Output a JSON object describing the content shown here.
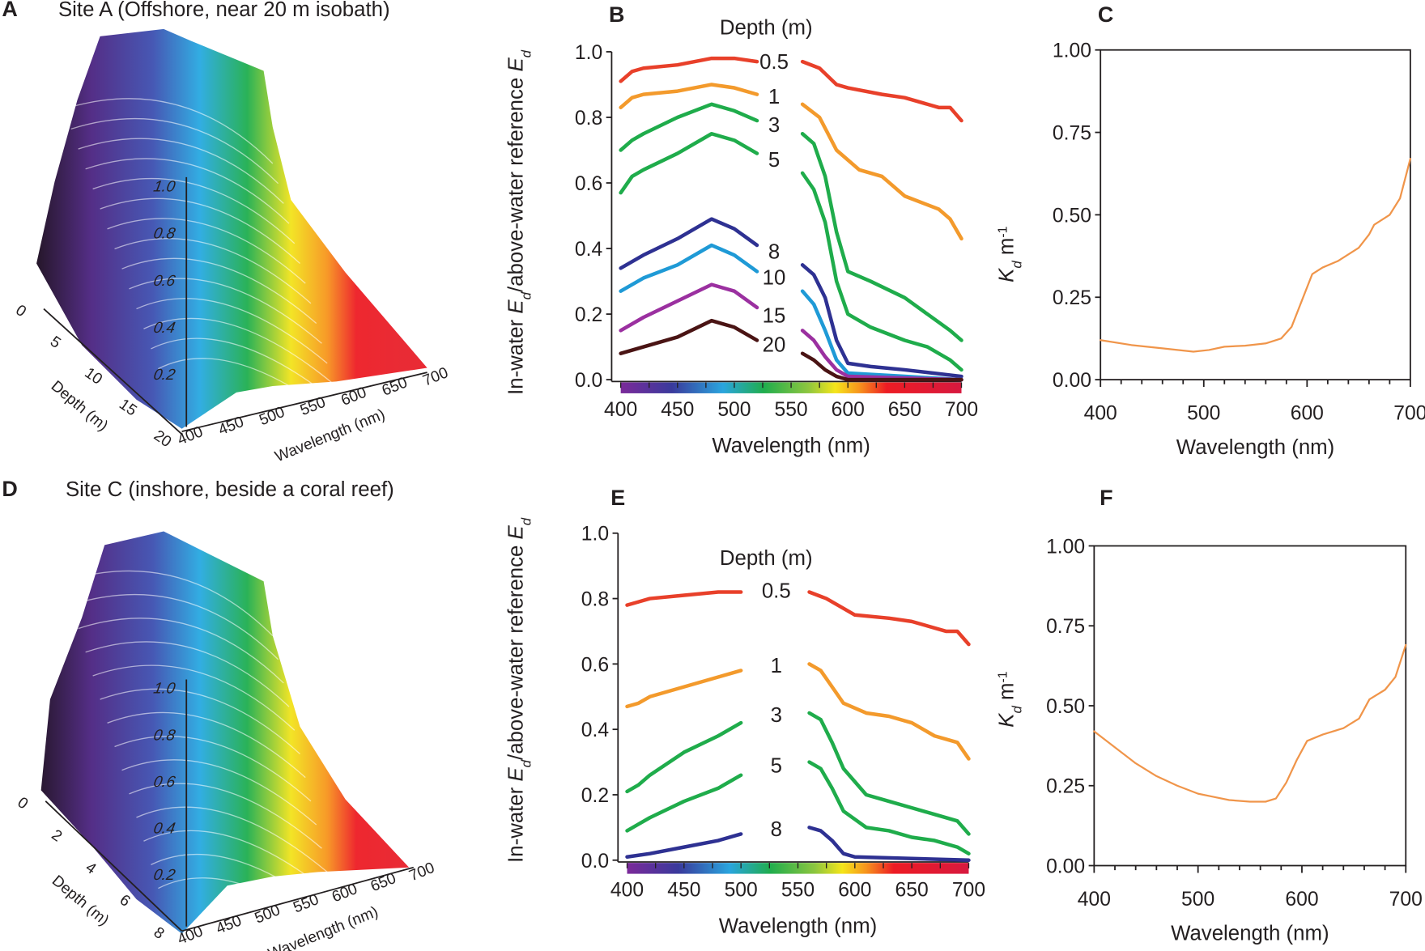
{
  "chart_data": [
    {
      "panel": "A",
      "type": "surface",
      "title": "Site A (Offshore, near 20 m isobath)",
      "x_label": "Wavelength (nm)",
      "x_ticks": [
        "400",
        "450",
        "500",
        "550",
        "600",
        "650",
        "700"
      ],
      "depth_label": "Depth (m)",
      "depth_ticks": [
        "0",
        "5",
        "10",
        "15",
        "20"
      ],
      "z_ticks": [
        "0.2",
        "0.4",
        "0.6",
        "0.8",
        "1.0"
      ]
    },
    {
      "panel": "B",
      "type": "line",
      "legend_title": "Depth (m)",
      "xlabel": "Wavelength (nm)",
      "ylabel_parts": [
        "In-water ",
        "E",
        "d",
        "/above-water reference ",
        "E",
        "d"
      ],
      "xlim": [
        400,
        700
      ],
      "ylim": [
        0,
        1.0
      ],
      "x_ticks": [
        "400",
        "450",
        "500",
        "550",
        "600",
        "650",
        "700"
      ],
      "y_ticks": [
        "0.0",
        "0.2",
        "0.4",
        "0.6",
        "0.8",
        "1.0"
      ],
      "colorbar": true,
      "series": [
        {
          "name": "0.5",
          "color": "#e8402a",
          "x": [
            400,
            410,
            420,
            450,
            480,
            500,
            520,
            545,
            560,
            575,
            590,
            600,
            630,
            650,
            680,
            690,
            700
          ],
          "y": [
            0.91,
            0.94,
            0.95,
            0.96,
            0.98,
            0.98,
            0.97,
            0.97,
            0.97,
            0.95,
            0.9,
            0.89,
            0.87,
            0.86,
            0.83,
            0.83,
            0.79
          ]
        },
        {
          "name": "1",
          "color": "#f39a2c",
          "x": [
            400,
            410,
            420,
            450,
            480,
            500,
            520,
            545,
            560,
            575,
            590,
            610,
            630,
            650,
            680,
            690,
            700
          ],
          "y": [
            0.83,
            0.86,
            0.87,
            0.88,
            0.9,
            0.89,
            0.87,
            0.86,
            0.84,
            0.8,
            0.7,
            0.64,
            0.62,
            0.56,
            0.52,
            0.49,
            0.43
          ]
        },
        {
          "name": "3",
          "color": "#1fac4b",
          "x": [
            400,
            410,
            420,
            450,
            480,
            500,
            520,
            545,
            560,
            570,
            580,
            590,
            600,
            620,
            650,
            670,
            690,
            700
          ],
          "y": [
            0.7,
            0.73,
            0.75,
            0.8,
            0.84,
            0.82,
            0.79,
            0.77,
            0.75,
            0.72,
            0.62,
            0.45,
            0.33,
            0.3,
            0.25,
            0.2,
            0.15,
            0.12
          ]
        },
        {
          "name": "5",
          "color": "#1fac4b",
          "x": [
            400,
            410,
            420,
            450,
            480,
            500,
            520,
            545,
            560,
            570,
            580,
            590,
            600,
            620,
            650,
            670,
            690,
            700
          ],
          "y": [
            0.57,
            0.62,
            0.64,
            0.69,
            0.75,
            0.73,
            0.69,
            0.66,
            0.63,
            0.58,
            0.48,
            0.3,
            0.2,
            0.16,
            0.12,
            0.1,
            0.06,
            0.03
          ]
        },
        {
          "name": "8",
          "color": "#2e3192",
          "x": [
            400,
            420,
            450,
            480,
            500,
            520,
            545,
            560,
            570,
            580,
            590,
            600,
            620,
            650,
            700
          ],
          "y": [
            0.34,
            0.38,
            0.43,
            0.49,
            0.46,
            0.41,
            0.38,
            0.35,
            0.32,
            0.25,
            0.12,
            0.05,
            0.04,
            0.03,
            0.01
          ]
        },
        {
          "name": "10",
          "color": "#1f9ad6",
          "x": [
            400,
            420,
            450,
            480,
            500,
            520,
            545,
            560,
            570,
            580,
            590,
            600,
            650,
            700
          ],
          "y": [
            0.27,
            0.31,
            0.35,
            0.41,
            0.38,
            0.33,
            0.3,
            0.27,
            0.23,
            0.15,
            0.06,
            0.02,
            0.01,
            0.0
          ]
        },
        {
          "name": "15",
          "color": "#9b30a0",
          "x": [
            400,
            420,
            450,
            480,
            500,
            520,
            545,
            560,
            570,
            580,
            590,
            600,
            700
          ],
          "y": [
            0.15,
            0.19,
            0.24,
            0.29,
            0.27,
            0.22,
            0.18,
            0.15,
            0.12,
            0.07,
            0.03,
            0.01,
            0.0
          ]
        },
        {
          "name": "20",
          "color": "#4a1414",
          "x": [
            400,
            420,
            450,
            480,
            500,
            520,
            545,
            560,
            570,
            580,
            590,
            600,
            700
          ],
          "y": [
            0.08,
            0.1,
            0.13,
            0.18,
            0.16,
            0.12,
            0.1,
            0.08,
            0.06,
            0.03,
            0.01,
            0.0,
            0.0
          ]
        }
      ]
    },
    {
      "panel": "C",
      "type": "line",
      "xlabel": "Wavelength (nm)",
      "ylabel_parts": [
        "K",
        "d",
        "  m",
        "-1"
      ],
      "xlim": [
        400,
        700
      ],
      "ylim": [
        0,
        1.0
      ],
      "x_ticks": [
        "400",
        "500",
        "600",
        "700"
      ],
      "y_ticks": [
        "0.00",
        "0.25",
        "0.50",
        "0.75",
        "1.00"
      ],
      "series": [
        {
          "color": "#f0954a",
          "x": [
            400,
            430,
            460,
            490,
            505,
            520,
            540,
            560,
            575,
            585,
            595,
            605,
            615,
            630,
            650,
            660,
            665,
            680,
            690,
            700
          ],
          "y": [
            0.12,
            0.105,
            0.095,
            0.085,
            0.09,
            0.1,
            0.103,
            0.11,
            0.125,
            0.16,
            0.24,
            0.32,
            0.34,
            0.36,
            0.4,
            0.44,
            0.47,
            0.5,
            0.55,
            0.67
          ]
        }
      ]
    },
    {
      "panel": "D",
      "type": "surface",
      "title": "Site C (inshore, beside a coral reef)",
      "x_label": "Wavelength (nm)",
      "x_ticks": [
        "400",
        "450",
        "500",
        "550",
        "600",
        "650",
        "700"
      ],
      "depth_label": "Depth (m)",
      "depth_ticks": [
        "0",
        "2",
        "4",
        "6",
        "8"
      ],
      "z_ticks": [
        "0.2",
        "0.4",
        "0.6",
        "0.8",
        "1.0"
      ]
    },
    {
      "panel": "E",
      "type": "line",
      "legend_title": "Depth (m)",
      "xlabel": "Wavelength (nm)",
      "ylabel_parts": [
        "In-water ",
        "E",
        "d",
        "/above-water reference ",
        "E",
        "d"
      ],
      "xlim": [
        400,
        700
      ],
      "ylim": [
        0,
        1.0
      ],
      "x_ticks": [
        "400",
        "450",
        "500",
        "550",
        "600",
        "650",
        "700"
      ],
      "y_ticks": [
        "0.0",
        "0.2",
        "0.4",
        "0.6",
        "0.8",
        "1.0"
      ],
      "colorbar": true,
      "series": [
        {
          "name": "0.5",
          "color": "#e8402a",
          "x": [
            400,
            410,
            420,
            450,
            480,
            500,
            515,
            545,
            560,
            575,
            590,
            600,
            630,
            650,
            680,
            690,
            700
          ],
          "y": [
            0.78,
            0.79,
            0.8,
            0.81,
            0.82,
            0.82,
            0.82,
            0.83,
            0.82,
            0.8,
            0.77,
            0.75,
            0.74,
            0.73,
            0.7,
            0.7,
            0.66
          ]
        },
        {
          "name": "1",
          "color": "#f39a2c",
          "x": [
            400,
            410,
            420,
            450,
            480,
            500,
            515,
            545,
            560,
            570,
            580,
            590,
            610,
            630,
            650,
            670,
            690,
            700
          ],
          "y": [
            0.47,
            0.48,
            0.5,
            0.53,
            0.56,
            0.58,
            0.59,
            0.6,
            0.6,
            0.58,
            0.53,
            0.48,
            0.45,
            0.44,
            0.42,
            0.38,
            0.36,
            0.31
          ]
        },
        {
          "name": "3",
          "color": "#1fac4b",
          "x": [
            400,
            410,
            420,
            450,
            480,
            500,
            515,
            545,
            560,
            570,
            580,
            590,
            610,
            630,
            650,
            670,
            690,
            700
          ],
          "y": [
            0.21,
            0.23,
            0.26,
            0.33,
            0.38,
            0.42,
            0.44,
            0.45,
            0.45,
            0.43,
            0.36,
            0.28,
            0.2,
            0.18,
            0.16,
            0.14,
            0.12,
            0.08
          ]
        },
        {
          "name": "5",
          "color": "#1fac4b",
          "x": [
            400,
            410,
            420,
            450,
            480,
            500,
            515,
            545,
            560,
            570,
            580,
            590,
            610,
            630,
            650,
            670,
            690,
            700
          ],
          "y": [
            0.09,
            0.11,
            0.13,
            0.18,
            0.22,
            0.26,
            0.28,
            0.3,
            0.3,
            0.28,
            0.22,
            0.15,
            0.1,
            0.09,
            0.07,
            0.06,
            0.04,
            0.02
          ]
        },
        {
          "name": "8",
          "color": "#2e3192",
          "x": [
            400,
            420,
            450,
            480,
            500,
            515,
            545,
            560,
            570,
            580,
            590,
            600,
            650,
            700
          ],
          "y": [
            0.01,
            0.02,
            0.04,
            0.06,
            0.08,
            0.09,
            0.1,
            0.1,
            0.09,
            0.06,
            0.02,
            0.01,
            0.005,
            0.0
          ]
        }
      ]
    },
    {
      "panel": "F",
      "type": "line",
      "xlabel": "Wavelength (nm)",
      "ylabel_parts": [
        "K",
        "d",
        " m",
        "-1"
      ],
      "xlim": [
        400,
        700
      ],
      "ylim": [
        0,
        1.0
      ],
      "x_ticks": [
        "400",
        "500",
        "600",
        "700"
      ],
      "y_ticks": [
        "0.00",
        "0.25",
        "0.50",
        "0.75",
        "1.00"
      ],
      "series": [
        {
          "color": "#f0954a",
          "x": [
            400,
            420,
            440,
            460,
            480,
            500,
            515,
            530,
            550,
            565,
            575,
            585,
            595,
            605,
            620,
            640,
            655,
            665,
            680,
            690,
            700
          ],
          "y": [
            0.42,
            0.37,
            0.32,
            0.28,
            0.25,
            0.225,
            0.215,
            0.205,
            0.2,
            0.2,
            0.21,
            0.26,
            0.33,
            0.39,
            0.41,
            0.43,
            0.46,
            0.52,
            0.55,
            0.59,
            0.69
          ]
        }
      ]
    }
  ]
}
